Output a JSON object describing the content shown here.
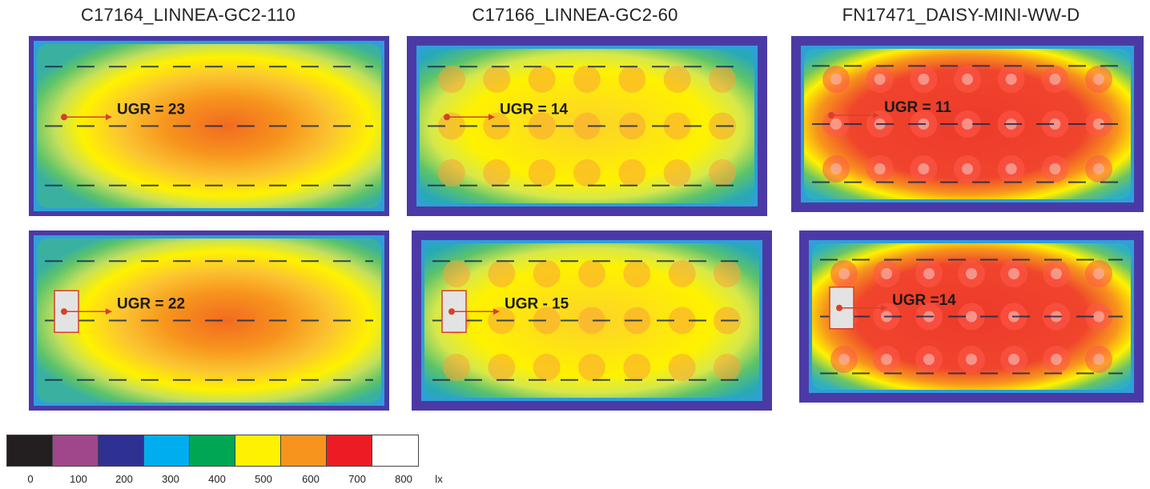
{
  "columns": [
    {
      "title": "C17164_LINNEA-GC2-110"
    },
    {
      "title": "C17166_LINNEA-GC2-60"
    },
    {
      "title": "FN17471_DAISY-MINI-WW-D"
    }
  ],
  "panels": [
    {
      "ugr": "UGR = 23",
      "style": "smooth",
      "source_box": false
    },
    {
      "ugr": "UGR = 14",
      "style": "grid-light",
      "source_box": false
    },
    {
      "ugr": "UGR = 11",
      "style": "grid-dense",
      "source_box": false
    },
    {
      "ugr": "UGR = 22",
      "style": "smooth",
      "source_box": true
    },
    {
      "ugr": "UGR - 15",
      "style": "grid-light",
      "source_box": true
    },
    {
      "ugr": "UGR =14",
      "style": "grid-dense",
      "source_box": true
    }
  ],
  "legend": {
    "colors": [
      "#231f20",
      "#a0478b",
      "#2e3192",
      "#00aeef",
      "#00a651",
      "#fff200",
      "#f7941d",
      "#ed1c24",
      "#ffffff"
    ],
    "ticks": [
      "0",
      "100",
      "200",
      "300",
      "400",
      "500",
      "600",
      "700",
      "800"
    ],
    "unit": "lx"
  }
}
